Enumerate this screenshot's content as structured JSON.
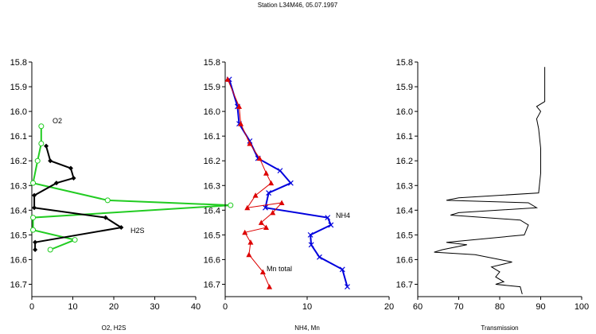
{
  "chart_data": [
    {
      "type": "line",
      "title": "Station L34M46, 05.07.1997",
      "xlabel": "O2, H2S",
      "ylabel": "",
      "xlim": [
        0,
        40
      ],
      "ylim": [
        16.75,
        15.8
      ],
      "y_inverted": true,
      "x_ticks": [
        "0",
        "10",
        "20",
        "30",
        "40"
      ],
      "y_ticks": [
        "15.8",
        "15.9",
        "16.0",
        "16.1",
        "16.2",
        "16.3",
        "16.4",
        "16.5",
        "16.6",
        "16.7"
      ],
      "series": [
        {
          "name": "O2",
          "color": "#22cc22",
          "marker": "circle",
          "points": [
            [
              2.3,
              16.06
            ],
            [
              2.3,
              16.13
            ],
            [
              1.4,
              16.2
            ],
            [
              0.3,
              16.29
            ],
            [
              18.5,
              16.36
            ],
            [
              48.5,
              16.38
            ],
            [
              0.3,
              16.43
            ],
            [
              0.3,
              16.48
            ],
            [
              10.5,
              16.52
            ],
            [
              4.5,
              16.56
            ]
          ]
        },
        {
          "name": "H2S",
          "color": "#000000",
          "marker": "diamond",
          "points": [
            [
              3.5,
              16.14
            ],
            [
              4.5,
              16.2
            ],
            [
              9.5,
              16.23
            ],
            [
              10.2,
              16.27
            ],
            [
              6.0,
              16.29
            ],
            [
              0.6,
              16.34
            ],
            [
              0.6,
              16.39
            ],
            [
              18.0,
              16.43
            ],
            [
              21.8,
              16.47
            ],
            [
              0.8,
              16.53
            ],
            [
              0.8,
              16.56
            ]
          ]
        }
      ],
      "annotations": [
        "O2",
        "H2S"
      ]
    },
    {
      "type": "line",
      "title": "",
      "xlabel": "NH4, Mn",
      "ylabel": "",
      "xlim": [
        0,
        20
      ],
      "ylim": [
        16.75,
        15.8
      ],
      "y_inverted": true,
      "x_ticks": [
        "0",
        "10",
        "20"
      ],
      "y_ticks": [
        "15.8",
        "15.9",
        "16.0",
        "16.1",
        "16.2",
        "16.3",
        "16.4",
        "16.5",
        "16.6",
        "16.7"
      ],
      "series": [
        {
          "name": "NH4",
          "color": "#0000dd",
          "marker": "x",
          "points": [
            [
              0.5,
              15.87
            ],
            [
              1.5,
              15.98
            ],
            [
              1.7,
              16.05
            ],
            [
              3.0,
              16.12
            ],
            [
              4.0,
              16.19
            ],
            [
              6.7,
              16.24
            ],
            [
              8.0,
              16.29
            ],
            [
              5.3,
              16.33
            ],
            [
              4.9,
              16.39
            ],
            [
              12.5,
              16.43
            ],
            [
              12.9,
              16.46
            ],
            [
              10.4,
              16.5
            ],
            [
              10.5,
              16.54
            ],
            [
              11.5,
              16.59
            ],
            [
              14.3,
              16.64
            ],
            [
              14.9,
              16.71
            ]
          ]
        },
        {
          "name": "Mn total",
          "color": "#dd0000",
          "marker": "triangle",
          "points": [
            [
              0.3,
              15.87
            ],
            [
              1.7,
              15.98
            ],
            [
              1.9,
              16.05
            ],
            [
              3.0,
              16.13
            ],
            [
              4.2,
              16.19
            ],
            [
              5.0,
              16.25
            ],
            [
              5.6,
              16.29
            ],
            [
              3.7,
              16.34
            ],
            [
              2.7,
              16.39
            ],
            [
              6.9,
              16.37
            ],
            [
              5.8,
              16.41
            ],
            [
              4.4,
              16.45
            ],
            [
              5.0,
              16.47
            ],
            [
              2.4,
              16.49
            ],
            [
              3.1,
              16.53
            ],
            [
              2.9,
              16.58
            ],
            [
              4.6,
              16.65
            ],
            [
              5.4,
              16.71
            ]
          ]
        }
      ],
      "annotations": [
        "NH4",
        "Mn total"
      ]
    },
    {
      "type": "line",
      "title": "",
      "xlabel": "Transmission",
      "ylabel": "",
      "xlim": [
        60,
        100
      ],
      "ylim": [
        16.75,
        15.8
      ],
      "y_inverted": true,
      "x_ticks": [
        "60",
        "70",
        "80",
        "90",
        "100"
      ],
      "y_ticks": [
        "15.8",
        "15.9",
        "16.0",
        "16.1",
        "16.2",
        "16.3",
        "16.4",
        "16.5",
        "16.6",
        "16.7"
      ],
      "series": [
        {
          "name": "Transmission",
          "color": "#000000",
          "marker": "none",
          "points": [
            [
              91,
              15.82
            ],
            [
              91,
              15.96
            ],
            [
              89,
              15.98
            ],
            [
              90,
              16.0
            ],
            [
              89,
              16.03
            ],
            [
              89.5,
              16.07
            ],
            [
              90,
              16.15
            ],
            [
              90,
              16.25
            ],
            [
              89.5,
              16.33
            ],
            [
              70,
              16.35
            ],
            [
              67,
              16.36
            ],
            [
              87,
              16.37
            ],
            [
              89,
              16.39
            ],
            [
              70,
              16.41
            ],
            [
              68,
              16.42
            ],
            [
              85,
              16.44
            ],
            [
              87,
              16.46
            ],
            [
              86,
              16.5
            ],
            [
              67,
              16.53
            ],
            [
              72,
              16.54
            ],
            [
              66,
              16.56
            ],
            [
              64,
              16.57
            ],
            [
              74,
              16.58
            ],
            [
              80,
              16.6
            ],
            [
              83,
              16.61
            ],
            [
              78,
              16.63
            ],
            [
              80,
              16.65
            ],
            [
              79,
              16.67
            ],
            [
              81,
              16.69
            ],
            [
              79,
              16.7
            ],
            [
              85,
              16.71
            ],
            [
              85.5,
              16.74
            ]
          ]
        }
      ],
      "annotations": []
    }
  ]
}
